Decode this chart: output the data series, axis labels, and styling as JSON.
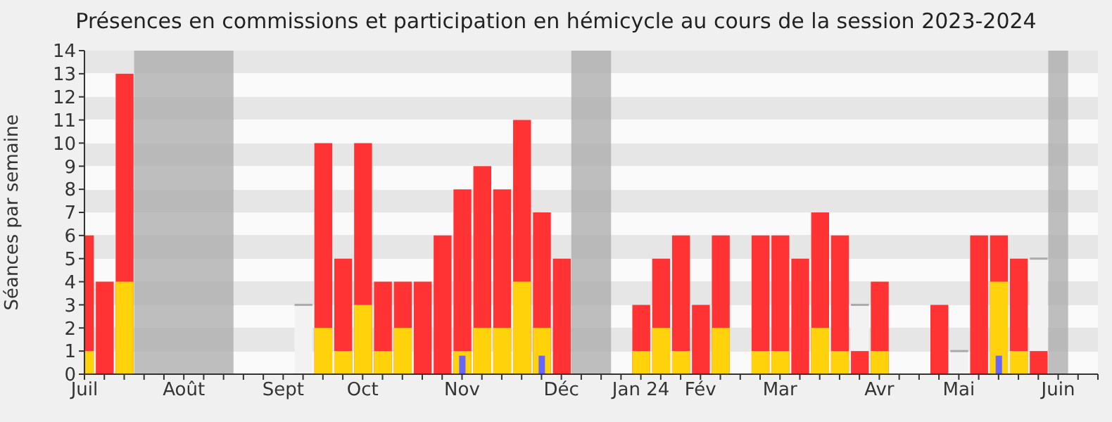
{
  "chart_data": {
    "type": "bar",
    "title": "Présences en commissions et participation en hémicycle au cours de la session 2023-2024",
    "ylabel": "Séances par semaine",
    "xlim": [
      "2023-07-03",
      "2024-06-24"
    ],
    "ylim": [
      0,
      14
    ],
    "yticks": [
      0,
      1,
      2,
      3,
      4,
      5,
      6,
      7,
      8,
      9,
      10,
      11,
      12,
      13,
      14
    ],
    "xticks": [
      {
        "value": "2023-07-03",
        "label": "Juil"
      },
      {
        "value": "2023-07-10",
        "label": null
      },
      {
        "value": "2023-07-17",
        "label": null
      },
      {
        "value": "2023-07-24",
        "label": null
      },
      {
        "value": "2023-07-31",
        "label": null
      },
      {
        "value": "2023-08-07",
        "label": "Août"
      },
      {
        "value": "2023-08-14",
        "label": null
      },
      {
        "value": "2023-08-21",
        "label": null
      },
      {
        "value": "2023-08-28",
        "label": null
      },
      {
        "value": "2023-09-04",
        "label": null
      },
      {
        "value": "2023-09-11",
        "label": "Sept"
      },
      {
        "value": "2023-09-18",
        "label": null
      },
      {
        "value": "2023-09-25",
        "label": null
      },
      {
        "value": "2023-10-02",
        "label": null
      },
      {
        "value": "2023-10-09",
        "label": "Oct"
      },
      {
        "value": "2023-10-16",
        "label": null
      },
      {
        "value": "2023-10-23",
        "label": null
      },
      {
        "value": "2023-10-30",
        "label": null
      },
      {
        "value": "2023-11-06",
        "label": null
      },
      {
        "value": "2023-11-13",
        "label": "Nov"
      },
      {
        "value": "2023-11-20",
        "label": null
      },
      {
        "value": "2023-11-27",
        "label": null
      },
      {
        "value": "2023-12-04",
        "label": null
      },
      {
        "value": "2023-12-11",
        "label": null
      },
      {
        "value": "2023-12-18",
        "label": "Déc"
      },
      {
        "value": "2023-12-25",
        "label": null
      },
      {
        "value": "2024-01-01",
        "label": null
      },
      {
        "value": "2024-01-08",
        "label": null
      },
      {
        "value": "2024-01-15",
        "label": "Jan 24"
      },
      {
        "value": "2024-01-22",
        "label": null
      },
      {
        "value": "2024-01-29",
        "label": null
      },
      {
        "value": "2024-02-05",
        "label": "Fév"
      },
      {
        "value": "2024-02-12",
        "label": null
      },
      {
        "value": "2024-02-19",
        "label": null
      },
      {
        "value": "2024-02-26",
        "label": null
      },
      {
        "value": "2024-03-04",
        "label": "Mar"
      },
      {
        "value": "2024-03-11",
        "label": null
      },
      {
        "value": "2024-03-18",
        "label": null
      },
      {
        "value": "2024-03-25",
        "label": null
      },
      {
        "value": "2024-04-01",
        "label": null
      },
      {
        "value": "2024-04-08",
        "label": "Avr"
      },
      {
        "value": "2024-04-15",
        "label": null
      },
      {
        "value": "2024-04-22",
        "label": null
      },
      {
        "value": "2024-04-29",
        "label": null
      },
      {
        "value": "2024-05-06",
        "label": "Mai"
      },
      {
        "value": "2024-05-13",
        "label": null
      },
      {
        "value": "2024-05-20",
        "label": null
      },
      {
        "value": "2024-05-27",
        "label": null
      },
      {
        "value": "2024-06-03",
        "label": null
      },
      {
        "value": "2024-06-10",
        "label": "Juin"
      },
      {
        "value": "2024-06-17",
        "label": null
      },
      {
        "value": "2024-06-24",
        "label": null
      }
    ],
    "bands": [
      {
        "axis": "x",
        "from": "2023-07-20T12:00",
        "to": "2023-08-24T12:00",
        "color": "#aaaaaa"
      },
      {
        "axis": "x",
        "from": "2023-12-21T12:00",
        "to": "2024-01-04T12:00",
        "color": "#aaaaaa"
      },
      {
        "axis": "x",
        "from": "2024-06-06T12:00",
        "to": "2024-06-13T12:00",
        "color": "#aaaaaa"
      }
    ],
    "series": [
      {
        "color": "#f2f2f2",
        "x": [
          "2023-09-18",
          "2024-04-01",
          "2024-05-06",
          "2024-06-03"
        ],
        "values": [
          3,
          3,
          1,
          5
        ]
      },
      {
        "color": "#ff3333",
        "x": [
          "2023-07-03",
          "2023-07-10",
          "2023-07-17",
          "2023-09-25",
          "2023-10-02",
          "2023-10-09",
          "2023-10-16",
          "2023-10-23",
          "2023-10-30",
          "2023-11-06",
          "2023-11-13",
          "2023-11-20",
          "2023-11-27",
          "2023-12-04",
          "2023-12-11",
          "2023-12-18",
          "2024-01-15",
          "2024-01-22",
          "2024-01-29",
          "2024-02-05",
          "2024-02-12",
          "2024-02-26",
          "2024-03-04",
          "2024-03-11",
          "2024-03-18",
          "2024-03-25",
          "2024-04-01",
          "2024-04-08",
          "2024-04-29",
          "2024-05-13",
          "2024-05-20",
          "2024-05-27",
          "2024-06-03"
        ],
        "values": [
          6,
          4,
          13,
          10,
          5,
          10,
          4,
          4,
          4,
          6,
          8,
          9,
          8,
          11,
          7,
          5,
          3,
          5,
          6,
          3,
          6,
          6,
          6,
          5,
          7,
          6,
          1,
          4,
          3,
          6,
          6,
          5,
          1
        ]
      },
      {
        "color": "#ffd20c",
        "x": [
          "2023-07-03",
          "2023-07-17",
          "2023-09-25",
          "2023-10-02",
          "2023-10-09",
          "2023-10-16",
          "2023-10-23",
          "2023-11-13",
          "2023-11-20",
          "2023-11-27",
          "2023-12-04",
          "2023-12-11",
          "2024-01-15",
          "2024-01-22",
          "2024-01-29",
          "2024-02-12",
          "2024-02-26",
          "2024-03-04",
          "2024-03-18",
          "2024-03-25",
          "2024-04-08",
          "2024-05-20",
          "2024-05-27"
        ],
        "values": [
          1,
          4,
          2,
          1,
          3,
          1,
          2,
          1,
          2,
          2,
          4,
          2,
          1,
          2,
          1,
          2,
          1,
          1,
          2,
          1,
          1,
          4,
          1
        ]
      },
      {
        "color": "#6666ff",
        "x": [
          "2023-11-13",
          "2023-12-11",
          "2024-05-20"
        ],
        "values": [
          0.8,
          0.8,
          0.8
        ]
      }
    ]
  }
}
